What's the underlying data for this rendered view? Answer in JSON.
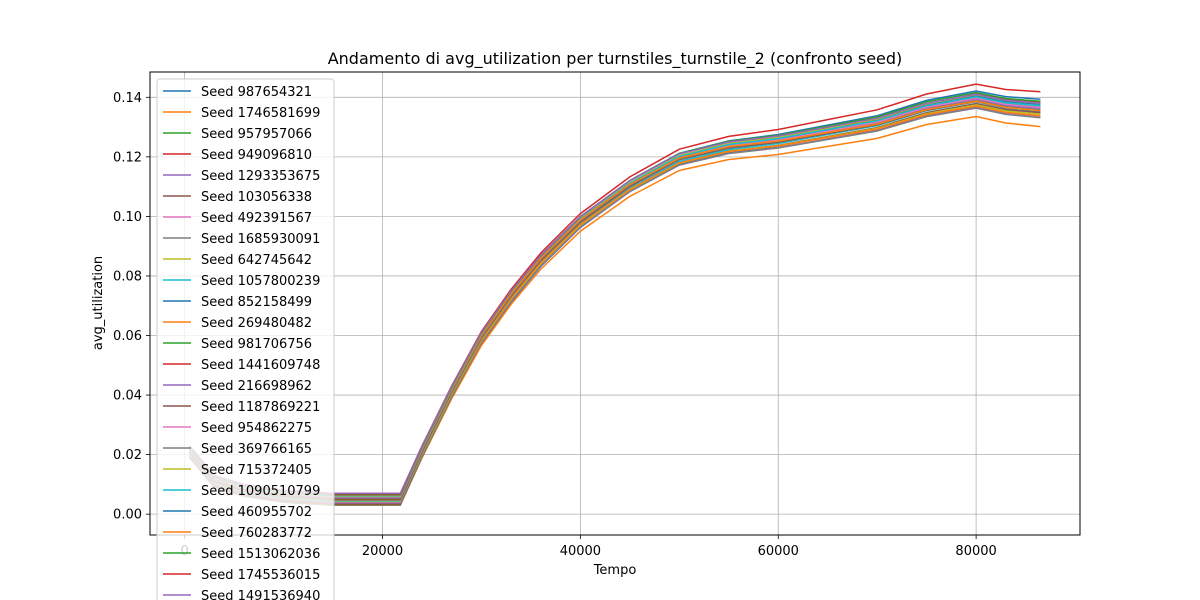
{
  "chart_data": {
    "type": "line",
    "title": "Andamento di avg_utilization per turnstiles_turnstile_2 (confronto seed)",
    "xlabel": "Tempo",
    "ylabel": "avg_utilization",
    "xlim": [
      -3500,
      90500
    ],
    "ylim": [
      -0.007,
      0.1485
    ],
    "xticks": [
      0,
      20000,
      40000,
      60000,
      80000
    ],
    "yticks": [
      0.0,
      0.02,
      0.04,
      0.06,
      0.08,
      0.1,
      0.12,
      0.14
    ],
    "ytick_labels": [
      "0.00",
      "0.02",
      "0.04",
      "0.06",
      "0.08",
      "0.10",
      "0.12",
      "0.14"
    ],
    "grid": true,
    "legend_position": "upper-left",
    "common_x": [
      500,
      3000,
      6000,
      10000,
      15000,
      21800,
      24000,
      27000,
      30000,
      33000,
      36000,
      40000,
      45000,
      50000,
      55000,
      60000,
      65000,
      70000,
      75000,
      80000,
      83000,
      86500
    ],
    "base_y": [
      0.021,
      0.011,
      0.008,
      0.006,
      0.005,
      0.005,
      0.021,
      0.041,
      0.059,
      0.073,
      0.085,
      0.098,
      0.11,
      0.119,
      0.123,
      0.125,
      0.128,
      0.131,
      0.136,
      0.139,
      0.137,
      0.136
    ],
    "series": [
      {
        "name": "Seed 987654321",
        "color": "#1f77b4",
        "end": 0.137
      },
      {
        "name": "Seed 1746581699",
        "color": "#ff7f0e",
        "end": 0.132
      },
      {
        "name": "Seed 957957066",
        "color": "#2ca02c",
        "end": 0.138
      },
      {
        "name": "Seed 949096810",
        "color": "#d62728",
        "end": 0.14
      },
      {
        "name": "Seed 1293353675",
        "color": "#9467bd",
        "end": 0.135
      },
      {
        "name": "Seed 103056338",
        "color": "#8c564b",
        "end": 0.136
      },
      {
        "name": "Seed 492391567",
        "color": "#e377c2",
        "end": 0.137
      },
      {
        "name": "Seed 1685930091",
        "color": "#7f7f7f",
        "end": 0.134
      },
      {
        "name": "Seed 642745642",
        "color": "#bcbd22",
        "end": 0.135
      },
      {
        "name": "Seed 1057800239",
        "color": "#17becf",
        "end": 0.136
      },
      {
        "name": "Seed 852158499",
        "color": "#1f77b4",
        "end": 0.138
      },
      {
        "name": "Seed 269480482",
        "color": "#ff7f0e",
        "end": 0.134
      },
      {
        "name": "Seed 981706756",
        "color": "#2ca02c",
        "end": 0.137
      },
      {
        "name": "Seed 1441609748",
        "color": "#d62728",
        "end": 0.138
      },
      {
        "name": "Seed 216698962",
        "color": "#9467bd",
        "end": 0.136
      },
      {
        "name": "Seed 1187869221",
        "color": "#8c564b",
        "end": 0.135
      },
      {
        "name": "Seed 954862275",
        "color": "#e377c2",
        "end": 0.136
      },
      {
        "name": "Seed 369766165",
        "color": "#7f7f7f",
        "end": 0.135
      },
      {
        "name": "Seed 715372405",
        "color": "#bcbd22",
        "end": 0.137
      },
      {
        "name": "Seed 1090510799",
        "color": "#17becf",
        "end": 0.136
      },
      {
        "name": "Seed 460955702",
        "color": "#1f77b4",
        "end": 0.138
      },
      {
        "name": "Seed 760283772",
        "color": "#ff7f0e",
        "end": 0.134
      },
      {
        "name": "Seed 1513062036",
        "color": "#2ca02c",
        "end": 0.137
      },
      {
        "name": "Seed 1745536015",
        "color": "#d62728",
        "end": 0.14
      },
      {
        "name": "Seed 1491536940",
        "color": "#9467bd",
        "end": 0.136
      }
    ]
  }
}
